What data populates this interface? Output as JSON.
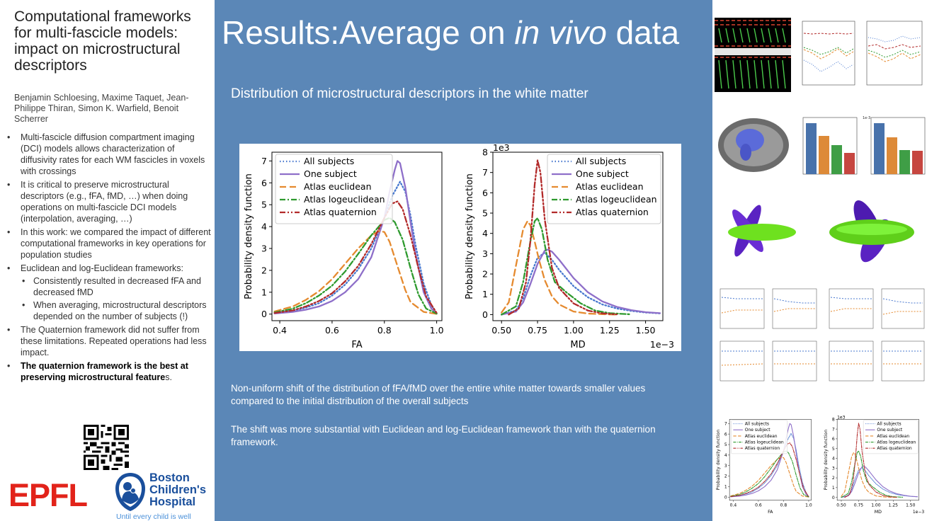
{
  "left": {
    "title": "Computational frameworks for multi-fascicle models: impact on microstructural descriptors",
    "authors": "Benjamin Schloesing, Maxime Taquet, Jean-Philippe Thiran, Simon K. Warfield, Benoit Scherrer",
    "bullets": [
      "Multi-fascicle diffusion compartment imaging (DCI) models allows characterization of  diffusivity rates for each WM fascicles in voxels with crossings",
      "It is critical to preserve microstructural descriptors (e.g., fFA, fMD, …) when doing operations on multi-fascicle DCI models (interpolation, averaging, …)",
      "In this work: we compared the impact of different computational frameworks in key operations for population studies",
      "Euclidean and log-Euclidean frameworks:",
      "The Quaternion framework did not suffer from these limitations. Repeated operations had less impact."
    ],
    "sub_bullets": [
      "Consistently resulted in decreased fFA and decreased fMD",
      "When averaging, microstructural descriptors depended on the number of subjects (!)"
    ],
    "final_bullet_bold": "The quaternion framework is the best at preserving microstructural feature",
    "final_bullet_tail": "s.",
    "epfl": "EPFL",
    "bch_line1": "Boston",
    "bch_line2": "Children's",
    "bch_line3": "Hospital",
    "bch_tagline": "Until every child is well"
  },
  "center": {
    "heading_main": "Results:Average on ",
    "heading_italic": "in vivo",
    "heading_tail": " data",
    "subheading": "Distribution of microstructural descriptors in the white matter",
    "para1": "Non-uniform shift of the distribution of fFA/fMD over the entire white matter towards smaller values compared to the initial distribution of the overall subjects",
    "para2": "The shift was more substantial with Euclidean and log-Euclidean framework than with the quaternion framework."
  },
  "chart_data": [
    {
      "type": "line",
      "xlabel": "FA",
      "ylabel": "Probability density function",
      "xlim": [
        0.37,
        1.02
      ],
      "ylim": [
        -0.3,
        7.4
      ],
      "xticks": [
        "0.4",
        "0.6",
        "0.8",
        "1.0"
      ],
      "yticks": [
        "0",
        "1",
        "2",
        "3",
        "4",
        "5",
        "6",
        "7"
      ],
      "legend_position": "top-left",
      "series": [
        {
          "name": "All subjects",
          "color": "#4878cf",
          "style": "dotted",
          "x": [
            0.38,
            0.45,
            0.5,
            0.55,
            0.6,
            0.65,
            0.7,
            0.75,
            0.8,
            0.83,
            0.86,
            0.88,
            0.9,
            0.92,
            0.95,
            0.98,
            1.0
          ],
          "y": [
            0.05,
            0.15,
            0.3,
            0.5,
            0.85,
            1.35,
            2.05,
            3.0,
            4.4,
            5.4,
            6.05,
            5.6,
            4.5,
            3.1,
            1.4,
            0.4,
            0.05
          ]
        },
        {
          "name": "One subject",
          "color": "#8e6fc9",
          "style": "solid",
          "x": [
            0.38,
            0.45,
            0.5,
            0.55,
            0.6,
            0.65,
            0.7,
            0.75,
            0.8,
            0.82,
            0.84,
            0.85,
            0.86,
            0.88,
            0.9,
            0.92,
            0.95,
            0.98,
            1.0
          ],
          "y": [
            0.03,
            0.1,
            0.2,
            0.35,
            0.6,
            1.0,
            1.6,
            2.6,
            4.4,
            5.6,
            6.6,
            7.0,
            6.9,
            5.8,
            4.2,
            2.7,
            1.0,
            0.25,
            0.03
          ]
        },
        {
          "name": "Atlas euclidean",
          "color": "#e58a2f",
          "style": "dashed",
          "x": [
            0.38,
            0.45,
            0.5,
            0.55,
            0.6,
            0.65,
            0.7,
            0.75,
            0.78,
            0.8,
            0.82,
            0.85,
            0.88,
            0.9,
            0.95,
            1.0
          ],
          "y": [
            0.12,
            0.35,
            0.65,
            1.05,
            1.6,
            2.3,
            3.0,
            3.6,
            3.8,
            3.75,
            3.3,
            2.2,
            1.1,
            0.55,
            0.1,
            0.01
          ]
        },
        {
          "name": "Atlas logeuclidean",
          "color": "#2e9a2e",
          "style": "dashdot",
          "x": [
            0.38,
            0.45,
            0.5,
            0.55,
            0.6,
            0.65,
            0.7,
            0.75,
            0.8,
            0.82,
            0.84,
            0.87,
            0.9,
            0.93,
            0.96,
            1.0
          ],
          "y": [
            0.08,
            0.25,
            0.5,
            0.85,
            1.3,
            1.95,
            2.75,
            3.6,
            4.3,
            4.4,
            4.2,
            3.4,
            2.1,
            0.9,
            0.25,
            0.02
          ]
        },
        {
          "name": "Atlas quaternion",
          "color": "#b22a2a",
          "style": "dashdotdot",
          "x": [
            0.38,
            0.45,
            0.5,
            0.55,
            0.6,
            0.65,
            0.7,
            0.75,
            0.8,
            0.83,
            0.85,
            0.87,
            0.9,
            0.93,
            0.96,
            1.0
          ],
          "y": [
            0.05,
            0.17,
            0.35,
            0.6,
            0.95,
            1.5,
            2.2,
            3.2,
            4.4,
            5.05,
            5.15,
            4.8,
            3.6,
            2.1,
            0.8,
            0.05
          ]
        }
      ]
    },
    {
      "type": "line",
      "xlabel": "MD",
      "ylabel": "Probability density function",
      "scale_label_top": "1e3",
      "scale_label_bottom": "1e−3",
      "xlim": [
        0.44,
        1.62
      ],
      "ylim": [
        -0.3,
        8.0
      ],
      "xticks": [
        "0.50",
        "0.75",
        "1.00",
        "1.25",
        "1.50"
      ],
      "yticks": [
        "0",
        "1",
        "2",
        "3",
        "4",
        "5",
        "6",
        "7",
        "8"
      ],
      "legend_position": "top-right",
      "series": [
        {
          "name": "All subjects",
          "color": "#4878cf",
          "style": "dotted",
          "x": [
            0.5,
            0.6,
            0.65,
            0.7,
            0.75,
            0.8,
            0.85,
            0.9,
            1.0,
            1.1,
            1.2,
            1.3,
            1.4,
            1.5,
            1.6
          ],
          "y": [
            0.0,
            0.2,
            0.8,
            1.9,
            2.8,
            3.05,
            2.7,
            2.2,
            1.4,
            0.85,
            0.5,
            0.3,
            0.18,
            0.1,
            0.06
          ]
        },
        {
          "name": "One subject",
          "color": "#8e6fc9",
          "style": "solid",
          "x": [
            0.5,
            0.6,
            0.65,
            0.7,
            0.75,
            0.8,
            0.82,
            0.85,
            0.9,
            1.0,
            1.1,
            1.2,
            1.3,
            1.4,
            1.5,
            1.6
          ],
          "y": [
            0.0,
            0.15,
            0.6,
            1.5,
            2.5,
            3.15,
            3.2,
            3.1,
            2.7,
            1.8,
            1.1,
            0.65,
            0.38,
            0.22,
            0.12,
            0.07
          ]
        },
        {
          "name": "Atlas euclidean",
          "color": "#e58a2f",
          "style": "dashed",
          "x": [
            0.5,
            0.55,
            0.6,
            0.65,
            0.68,
            0.7,
            0.73,
            0.76,
            0.8,
            0.85,
            0.9,
            1.0,
            1.1,
            1.2,
            1.3
          ],
          "y": [
            0.1,
            0.6,
            2.4,
            4.2,
            4.6,
            4.4,
            3.6,
            2.7,
            1.7,
            0.9,
            0.5,
            0.15,
            0.05,
            0.02,
            0.0
          ]
        },
        {
          "name": "Atlas logeuclidean",
          "color": "#2e9a2e",
          "style": "dashdot",
          "x": [
            0.5,
            0.6,
            0.65,
            0.7,
            0.73,
            0.75,
            0.78,
            0.82,
            0.87,
            0.95,
            1.05,
            1.15,
            1.25,
            1.4
          ],
          "y": [
            0.0,
            0.4,
            1.6,
            3.6,
            4.6,
            4.75,
            4.2,
            2.7,
            1.6,
            1.1,
            0.55,
            0.2,
            0.07,
            0.01
          ]
        },
        {
          "name": "Atlas quaternion",
          "color": "#b22a2a",
          "style": "dashdotdot",
          "x": [
            0.55,
            0.62,
            0.67,
            0.7,
            0.73,
            0.75,
            0.77,
            0.8,
            0.85,
            0.9,
            1.0,
            1.1,
            1.2,
            1.3
          ],
          "y": [
            0.0,
            0.3,
            1.6,
            3.6,
            6.4,
            7.6,
            7.0,
            4.7,
            2.3,
            1.3,
            0.55,
            0.2,
            0.06,
            0.01
          ]
        }
      ]
    }
  ],
  "right": {
    "thumb_hist_1_label": "1e-3"
  }
}
